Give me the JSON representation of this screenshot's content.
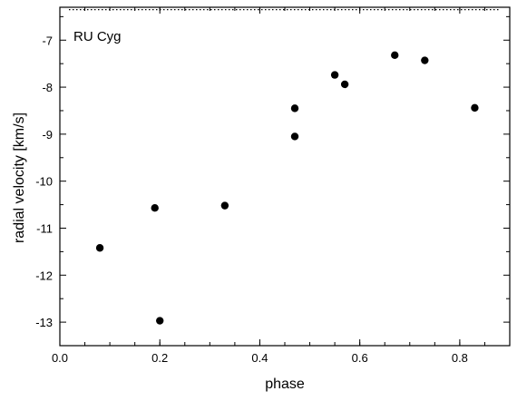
{
  "chart_data": {
    "type": "scatter",
    "title": "",
    "annotation": "RU Cyg",
    "xlabel": "phase",
    "ylabel": "radial velocity [km/s]",
    "xlim": [
      0.0,
      0.9
    ],
    "ylim": [
      -13.5,
      -6.3
    ],
    "xticks": [
      "0.0",
      "0.2",
      "0.4",
      "0.6",
      "0.8"
    ],
    "yticks": [
      "-7",
      "-8",
      "-9",
      "-10",
      "-11",
      "-12",
      "-13"
    ],
    "reference_line_y": -6.35,
    "grid": false,
    "series": [
      {
        "points": [
          {
            "x": 0.08,
            "y": -11.42
          },
          {
            "x": 0.19,
            "y": -10.57
          },
          {
            "x": 0.2,
            "y": -12.97
          },
          {
            "x": 0.33,
            "y": -10.52
          },
          {
            "x": 0.47,
            "y": -8.45
          },
          {
            "x": 0.47,
            "y": -9.05
          },
          {
            "x": 0.55,
            "y": -7.74
          },
          {
            "x": 0.57,
            "y": -7.94
          },
          {
            "x": 0.67,
            "y": -7.32
          },
          {
            "x": 0.73,
            "y": -7.43
          },
          {
            "x": 0.83,
            "y": -8.44
          }
        ]
      }
    ]
  }
}
